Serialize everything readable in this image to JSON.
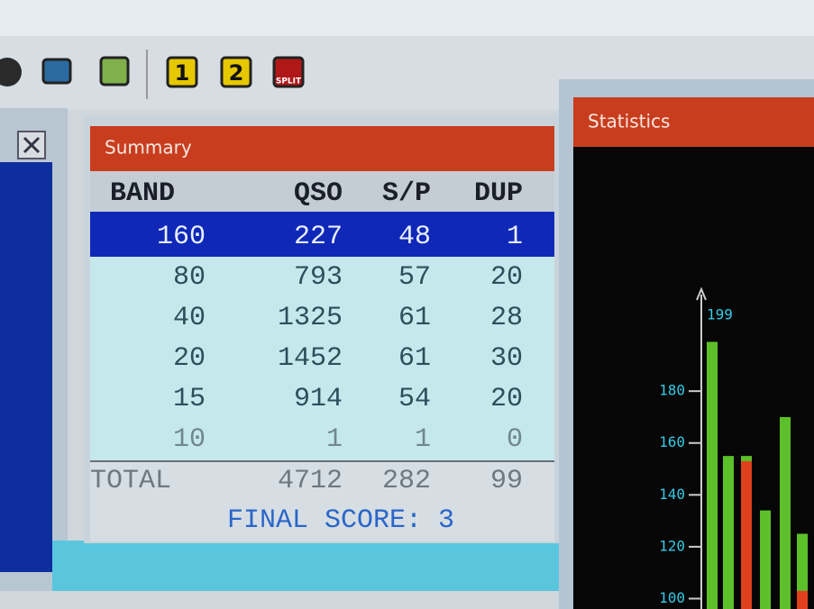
{
  "toolbar": {
    "buttons": [
      "1",
      "2",
      "SPLIT"
    ]
  },
  "summary": {
    "title": "Summary",
    "columns": [
      "BAND",
      "QSO",
      "S/P",
      "DUP"
    ],
    "rows": [
      [
        160,
        227,
        48,
        1
      ],
      [
        80,
        793,
        57,
        20
      ],
      [
        40,
        1325,
        61,
        28
      ],
      [
        20,
        1452,
        61,
        30
      ],
      [
        15,
        914,
        54,
        20
      ],
      [
        10,
        1,
        1,
        0
      ]
    ],
    "total": [
      "TOTAL",
      4712,
      282,
      99
    ],
    "final_score": "FINAL SCORE: 3"
  },
  "statistics": {
    "title": "Statistics",
    "chart_data": {
      "type": "bar",
      "annotation": "199",
      "ylim": [
        96,
        220
      ],
      "yticks": [
        100,
        120,
        140,
        160,
        180
      ],
      "series": [
        {
          "color": "#5cc02a",
          "values": [
            199,
            155,
            155,
            134,
            170,
            125
          ]
        },
        {
          "color": "#e0401e",
          "values": [
            null,
            null,
            153,
            null,
            null,
            103
          ]
        }
      ]
    }
  }
}
